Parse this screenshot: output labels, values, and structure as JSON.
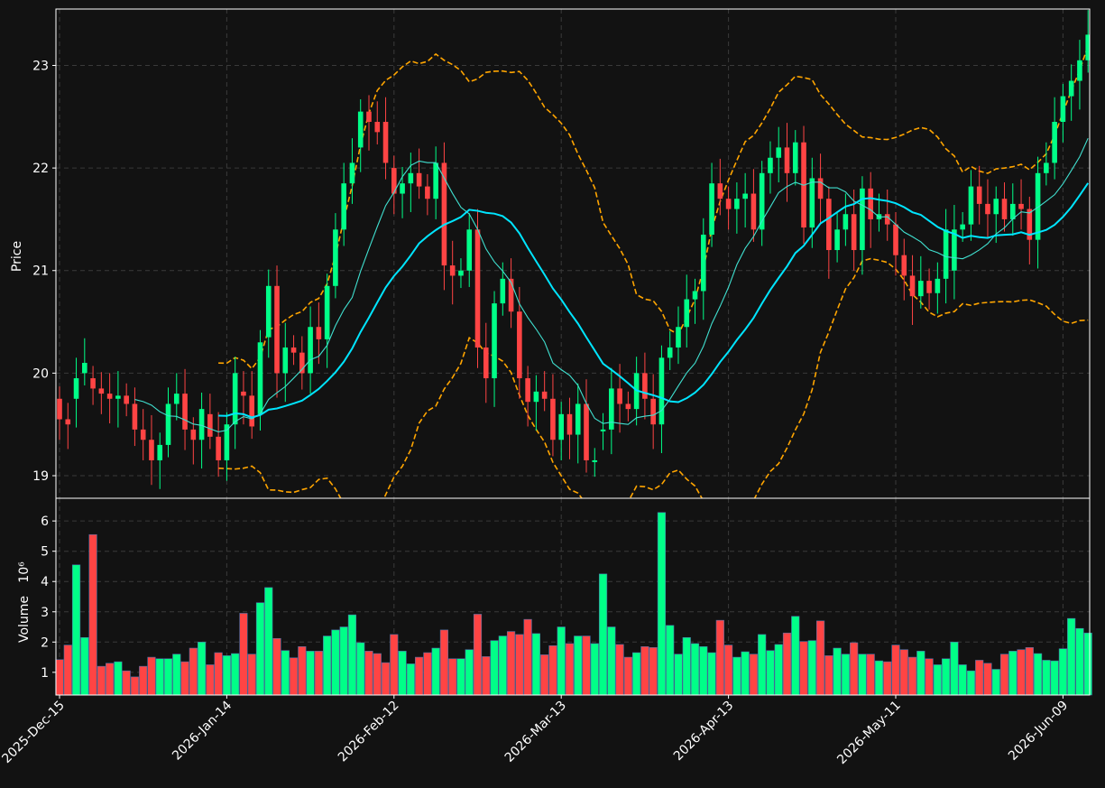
{
  "chart_data": {
    "type": "candlestick",
    "ylabel_price": "Price",
    "ylabel_volume": "Volume",
    "volume_exponent_label": "10⁶",
    "colors": {
      "background": "#121212",
      "up": "#00ff88",
      "down": "#ff4444",
      "ma_short": "#40e0d0",
      "ma_long": "#00e5ff",
      "bands": "#ffa500",
      "grid": "#3a3a3a",
      "text": "#ffffff"
    },
    "price_ylim": [
      18.78,
      23.55
    ],
    "price_yticks": [
      19,
      20,
      21,
      22,
      23
    ],
    "volume_ylim": [
      0.25,
      6.75
    ],
    "volume_yticks": [
      1,
      2,
      3,
      4,
      5,
      6
    ],
    "x_tick_labels": [
      "2025-Dec-15",
      "2026-Jan-14",
      "2026-Feb-12",
      "2026-Mar-13",
      "2026-Apr-13",
      "2026-May-11",
      "2026-Jun-09"
    ],
    "x_tick_index": [
      0,
      20,
      40,
      60,
      80,
      100,
      120
    ],
    "n_candles": 124,
    "closes": [
      19.55,
      19.5,
      19.95,
      20.1,
      19.85,
      19.8,
      19.75,
      19.78,
      19.7,
      19.45,
      19.35,
      19.15,
      19.3,
      19.7,
      19.8,
      19.45,
      19.35,
      19.65,
      19.38,
      19.15,
      19.5,
      20.0,
      19.78,
      19.48,
      20.3,
      20.85,
      20.0,
      20.25,
      20.2,
      20.0,
      20.45,
      20.33,
      20.85,
      21.4,
      21.85,
      22.05,
      22.55,
      22.45,
      22.35,
      22.05,
      21.75,
      21.85,
      21.95,
      21.82,
      21.7,
      22.05,
      21.05,
      20.95,
      21.0,
      21.4,
      20.25,
      19.95,
      20.68,
      20.92,
      20.6,
      19.95,
      19.72,
      19.82,
      19.75,
      19.35,
      19.6,
      19.4,
      19.7,
      19.15,
      19.15,
      19.45,
      19.85,
      19.7,
      19.65,
      20.0,
      19.75,
      19.5,
      20.15,
      20.25,
      20.45,
      20.72,
      20.8,
      21.35,
      21.85,
      21.7,
      21.6,
      21.7,
      21.75,
      21.4,
      21.95,
      22.1,
      22.2,
      21.95,
      22.25,
      21.42,
      21.9,
      21.7,
      21.2,
      21.4,
      21.55,
      21.2,
      21.8,
      21.5,
      21.55,
      21.45,
      21.15,
      20.95,
      20.75,
      20.9,
      20.78,
      20.92,
      21.4,
      21.4,
      21.45,
      21.82,
      21.65,
      21.55,
      21.7,
      21.5,
      21.65,
      21.6,
      21.3,
      21.95,
      22.05,
      22.45,
      22.7,
      22.85,
      23.05,
      23.3
    ],
    "opens": [
      19.75,
      19.55,
      19.75,
      20.0,
      19.95,
      19.85,
      19.8,
      19.75,
      19.78,
      19.7,
      19.45,
      19.35,
      19.15,
      19.3,
      19.7,
      19.8,
      19.45,
      19.35,
      19.6,
      19.38,
      19.15,
      19.5,
      19.82,
      19.78,
      19.6,
      20.35,
      20.85,
      20.0,
      20.25,
      20.2,
      20.0,
      20.45,
      20.33,
      20.85,
      21.4,
      21.85,
      22.2,
      22.55,
      22.45,
      22.45,
      22.0,
      21.75,
      21.85,
      21.95,
      21.82,
      21.7,
      22.05,
      21.05,
      20.95,
      21.0,
      21.4,
      20.25,
      19.95,
      20.68,
      20.92,
      20.6,
      19.95,
      19.72,
      19.82,
      19.75,
      19.35,
      19.6,
      19.4,
      19.7,
      19.15,
      19.45,
      19.45,
      19.85,
      19.7,
      19.65,
      20.0,
      19.75,
      19.5,
      20.15,
      20.25,
      20.45,
      20.72,
      20.8,
      21.35,
      21.85,
      21.7,
      21.6,
      21.7,
      21.75,
      21.4,
      21.95,
      22.1,
      22.2,
      21.95,
      22.25,
      21.42,
      21.9,
      21.7,
      21.2,
      21.4,
      21.55,
      21.2,
      21.8,
      21.5,
      21.55,
      21.45,
      21.15,
      20.95,
      20.75,
      20.9,
      20.78,
      20.92,
      21.0,
      21.4,
      21.45,
      21.82,
      21.65,
      21.55,
      21.7,
      21.5,
      21.65,
      21.6,
      21.3,
      21.95,
      22.05,
      22.45,
      22.7,
      22.85,
      23.05
    ],
    "volume": [
      1.42,
      1.9,
      4.55,
      2.15,
      5.55,
      1.2,
      1.3,
      1.35,
      1.05,
      0.85,
      1.2,
      1.5,
      1.45,
      1.45,
      1.6,
      1.35,
      1.8,
      2.0,
      1.25,
      1.65,
      1.55,
      1.62,
      2.95,
      1.6,
      3.3,
      3.8,
      2.12,
      1.72,
      1.48,
      1.85,
      1.7,
      1.7,
      2.2,
      2.4,
      2.5,
      2.9,
      1.98,
      1.7,
      1.62,
      1.32,
      2.25,
      1.7,
      1.28,
      1.5,
      1.65,
      1.8,
      2.4,
      1.45,
      1.45,
      1.75,
      2.92,
      1.52,
      2.05,
      2.2,
      2.35,
      2.25,
      2.75,
      2.28,
      1.58,
      1.88,
      2.5,
      1.95,
      2.2,
      2.2,
      1.95,
      4.25,
      2.5,
      1.92,
      1.5,
      1.65,
      1.85,
      1.82,
      6.28,
      2.55,
      1.6,
      2.15,
      1.95,
      1.85,
      1.65,
      2.72,
      1.9,
      1.5,
      1.68,
      1.6,
      2.25,
      1.72,
      1.92,
      2.3,
      2.85,
      2.02,
      2.05,
      2.7,
      1.55,
      1.8,
      1.6,
      1.98,
      1.6,
      1.6,
      1.38,
      1.35,
      1.9,
      1.75,
      1.5,
      1.7,
      1.45,
      1.25,
      1.45,
      2.0,
      1.25,
      1.05,
      1.4,
      1.3,
      1.1,
      1.6,
      1.7,
      1.75,
      1.82,
      1.62,
      1.4,
      1.38,
      1.78,
      2.78,
      2.45,
      2.3
    ]
  }
}
